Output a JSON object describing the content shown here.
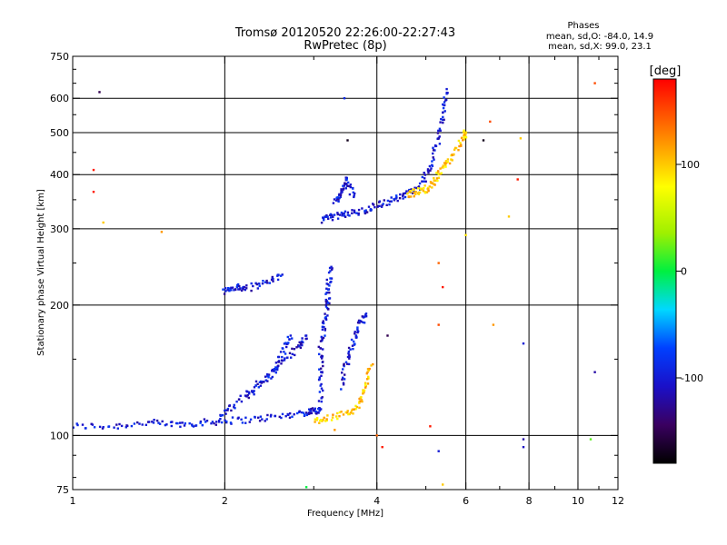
{
  "chart_data": {
    "type": "scatter",
    "title": "Tromsø 20120520 22:26:00-22:27:43",
    "subtitle": "RwPretec (8p)",
    "xlabel": "Frequency [MHz]",
    "ylabel": "Stationary phase Virtual Height [km]",
    "x_scale": "log",
    "y_scale": "log",
    "xlim": [
      1,
      12
    ],
    "ylim": [
      75,
      750
    ],
    "x_ticks": [
      1,
      2,
      4,
      6,
      8,
      10,
      12
    ],
    "x_tick_labels": [
      "1",
      "2",
      "4",
      "6",
      "8",
      "10",
      "12"
    ],
    "x_grid": [
      2,
      4,
      6,
      8,
      10
    ],
    "y_ticks": [
      75,
      100,
      200,
      300,
      400,
      500,
      600,
      750
    ],
    "y_tick_labels": [
      "75",
      "100",
      "200",
      "300",
      "400",
      "500",
      "600",
      "750"
    ],
    "y_grid": [
      100,
      200,
      300,
      400,
      500,
      600
    ],
    "grid": true,
    "stats": {
      "heading": "Phases",
      "line1": "mean, sd,O: -84.0, 14.9",
      "line2": "mean, sd,X: 99.0, 23.1"
    },
    "colorbar": {
      "label": "[deg]",
      "range": [
        -180,
        180
      ],
      "ticks": [
        100,
        0,
        -100
      ],
      "tick_labels": [
        "100",
        "0",
        "-100"
      ],
      "colormap": "rainbow (black-purple-blue-cyan-green-yellow-orange-red)"
    },
    "series": [
      {
        "mode": "O",
        "color_hint": "blue (-100 deg)",
        "traces": [
          {
            "segment": "E-layer trace",
            "x": [
              1.0,
              1.2,
              1.4,
              1.6,
              1.8,
              2.0,
              2.3,
              2.6,
              2.9,
              3.0,
              3.1
            ],
            "y": [
              105,
              105,
              107,
              106,
              107,
              108,
              109,
              111,
              113,
              114,
              115
            ]
          },
          {
            "segment": "F1 lower trace",
            "x": [
              1.95,
              2.1,
              2.3,
              2.5,
              2.6,
              2.7
            ],
            "y": [
              110,
              118,
              128,
              140,
              155,
              170
            ]
          },
          {
            "segment": "F1 branch",
            "x": [
              2.2,
              2.4,
              2.6,
              2.8,
              2.9
            ],
            "y": [
              125,
              135,
              148,
              160,
              170
            ]
          },
          {
            "segment": "Es/F patch",
            "x": [
              2.0,
              2.1,
              2.2,
              2.4,
              2.6
            ],
            "y": [
              215,
              220,
              218,
              225,
              235
            ]
          },
          {
            "segment": "F1 cusp column",
            "x": [
              3.1,
              3.1,
              3.1,
              3.15,
              3.2,
              3.2,
              3.25
            ],
            "y": [
              120,
              140,
              160,
              180,
              200,
              220,
              245
            ]
          },
          {
            "segment": "F1 second column",
            "x": [
              3.4,
              3.5,
              3.6,
              3.7,
              3.8
            ],
            "y": [
              130,
              150,
              165,
              180,
              190
            ]
          },
          {
            "segment": "F2 trace",
            "x": [
              3.1,
              3.3,
              3.5,
              3.8,
              4.0,
              4.3,
              4.6,
              4.9,
              5.1,
              5.3,
              5.4,
              5.5
            ],
            "y": [
              315,
              320,
              325,
              330,
              340,
              350,
              360,
              380,
              420,
              480,
              550,
              630
            ]
          },
          {
            "segment": "F2 kink",
            "x": [
              3.3,
              3.4,
              3.5,
              3.6
            ],
            "y": [
              345,
              365,
              390,
              355
            ]
          }
        ]
      },
      {
        "mode": "X",
        "color_hint": "yellow/orange (+100 deg)",
        "traces": [
          {
            "segment": "F1 X trace",
            "x": [
              3.0,
              3.2,
              3.5,
              3.7,
              3.8,
              3.9
            ],
            "y": [
              108,
              110,
              112,
              118,
              130,
              145
            ]
          },
          {
            "segment": "F2 X trace",
            "x": [
              4.6,
              4.8,
              5.0,
              5.2,
              5.4,
              5.6,
              5.9,
              6.0
            ],
            "y": [
              360,
              365,
              370,
              385,
              410,
              440,
              480,
              500
            ]
          }
        ]
      },
      {
        "mode": "scattered",
        "color_hint": "mixed",
        "points": [
          {
            "x": 1.13,
            "y": 620,
            "phase": -150
          },
          {
            "x": 1.1,
            "y": 410,
            "phase": 170
          },
          {
            "x": 1.1,
            "y": 365,
            "phase": 170
          },
          {
            "x": 1.15,
            "y": 310,
            "phase": 100
          },
          {
            "x": 1.5,
            "y": 295,
            "phase": 120
          },
          {
            "x": 3.45,
            "y": 600,
            "phase": -90
          },
          {
            "x": 3.5,
            "y": 480,
            "phase": -170
          },
          {
            "x": 2.9,
            "y": 76,
            "phase": 0
          },
          {
            "x": 3.3,
            "y": 103,
            "phase": 120
          },
          {
            "x": 4.0,
            "y": 100,
            "phase": 140
          },
          {
            "x": 4.1,
            "y": 94,
            "phase": 170
          },
          {
            "x": 4.2,
            "y": 170,
            "phase": -150
          },
          {
            "x": 5.3,
            "y": 92,
            "phase": -100
          },
          {
            "x": 5.4,
            "y": 77,
            "phase": 100
          },
          {
            "x": 5.3,
            "y": 250,
            "phase": 140
          },
          {
            "x": 5.3,
            "y": 180,
            "phase": 150
          },
          {
            "x": 5.4,
            "y": 220,
            "phase": 170
          },
          {
            "x": 6.0,
            "y": 290,
            "phase": 90
          },
          {
            "x": 6.5,
            "y": 480,
            "phase": -170
          },
          {
            "x": 6.7,
            "y": 530,
            "phase": 150
          },
          {
            "x": 7.3,
            "y": 320,
            "phase": 100
          },
          {
            "x": 7.6,
            "y": 390,
            "phase": 170
          },
          {
            "x": 7.7,
            "y": 485,
            "phase": 100
          },
          {
            "x": 7.8,
            "y": 163,
            "phase": -100
          },
          {
            "x": 7.8,
            "y": 98,
            "phase": -120
          },
          {
            "x": 7.8,
            "y": 94,
            "phase": -110
          },
          {
            "x": 10.8,
            "y": 140,
            "phase": -120
          },
          {
            "x": 10.8,
            "y": 650,
            "phase": 150
          },
          {
            "x": 10.6,
            "y": 98,
            "phase": 20
          },
          {
            "x": 6.8,
            "y": 180,
            "phase": 120
          },
          {
            "x": 5.1,
            "y": 105,
            "phase": 170
          }
        ]
      }
    ]
  }
}
